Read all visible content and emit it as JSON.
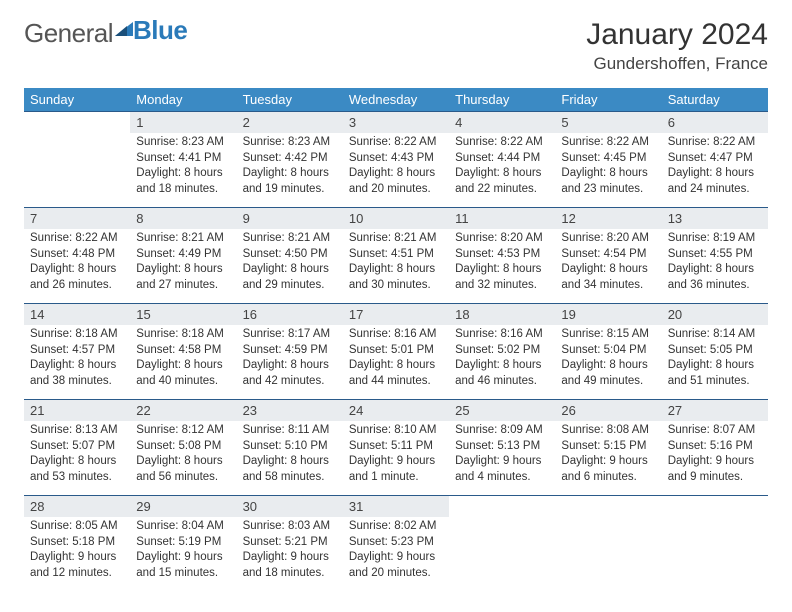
{
  "logo": {
    "part1": "General",
    "part2": "Blue"
  },
  "title": "January 2024",
  "location": "Gundershoffen, France",
  "weekdays": [
    "Sunday",
    "Monday",
    "Tuesday",
    "Wednesday",
    "Thursday",
    "Friday",
    "Saturday"
  ],
  "colors": {
    "header_bg": "#3b8ac4",
    "header_text": "#ffffff",
    "daynum_bg": "#e9ecef",
    "row_border": "#2a5a8a",
    "logo_gray": "#555555",
    "logo_blue": "#2a7ab9"
  },
  "weeks": [
    {
      "nums": [
        "",
        "1",
        "2",
        "3",
        "4",
        "5",
        "6"
      ],
      "cells": [
        {},
        {
          "sunrise": "Sunrise: 8:23 AM",
          "sunset": "Sunset: 4:41 PM",
          "day1": "Daylight: 8 hours",
          "day2": "and 18 minutes."
        },
        {
          "sunrise": "Sunrise: 8:23 AM",
          "sunset": "Sunset: 4:42 PM",
          "day1": "Daylight: 8 hours",
          "day2": "and 19 minutes."
        },
        {
          "sunrise": "Sunrise: 8:22 AM",
          "sunset": "Sunset: 4:43 PM",
          "day1": "Daylight: 8 hours",
          "day2": "and 20 minutes."
        },
        {
          "sunrise": "Sunrise: 8:22 AM",
          "sunset": "Sunset: 4:44 PM",
          "day1": "Daylight: 8 hours",
          "day2": "and 22 minutes."
        },
        {
          "sunrise": "Sunrise: 8:22 AM",
          "sunset": "Sunset: 4:45 PM",
          "day1": "Daylight: 8 hours",
          "day2": "and 23 minutes."
        },
        {
          "sunrise": "Sunrise: 8:22 AM",
          "sunset": "Sunset: 4:47 PM",
          "day1": "Daylight: 8 hours",
          "day2": "and 24 minutes."
        }
      ]
    },
    {
      "nums": [
        "7",
        "8",
        "9",
        "10",
        "11",
        "12",
        "13"
      ],
      "cells": [
        {
          "sunrise": "Sunrise: 8:22 AM",
          "sunset": "Sunset: 4:48 PM",
          "day1": "Daylight: 8 hours",
          "day2": "and 26 minutes."
        },
        {
          "sunrise": "Sunrise: 8:21 AM",
          "sunset": "Sunset: 4:49 PM",
          "day1": "Daylight: 8 hours",
          "day2": "and 27 minutes."
        },
        {
          "sunrise": "Sunrise: 8:21 AM",
          "sunset": "Sunset: 4:50 PM",
          "day1": "Daylight: 8 hours",
          "day2": "and 29 minutes."
        },
        {
          "sunrise": "Sunrise: 8:21 AM",
          "sunset": "Sunset: 4:51 PM",
          "day1": "Daylight: 8 hours",
          "day2": "and 30 minutes."
        },
        {
          "sunrise": "Sunrise: 8:20 AM",
          "sunset": "Sunset: 4:53 PM",
          "day1": "Daylight: 8 hours",
          "day2": "and 32 minutes."
        },
        {
          "sunrise": "Sunrise: 8:20 AM",
          "sunset": "Sunset: 4:54 PM",
          "day1": "Daylight: 8 hours",
          "day2": "and 34 minutes."
        },
        {
          "sunrise": "Sunrise: 8:19 AM",
          "sunset": "Sunset: 4:55 PM",
          "day1": "Daylight: 8 hours",
          "day2": "and 36 minutes."
        }
      ]
    },
    {
      "nums": [
        "14",
        "15",
        "16",
        "17",
        "18",
        "19",
        "20"
      ],
      "cells": [
        {
          "sunrise": "Sunrise: 8:18 AM",
          "sunset": "Sunset: 4:57 PM",
          "day1": "Daylight: 8 hours",
          "day2": "and 38 minutes."
        },
        {
          "sunrise": "Sunrise: 8:18 AM",
          "sunset": "Sunset: 4:58 PM",
          "day1": "Daylight: 8 hours",
          "day2": "and 40 minutes."
        },
        {
          "sunrise": "Sunrise: 8:17 AM",
          "sunset": "Sunset: 4:59 PM",
          "day1": "Daylight: 8 hours",
          "day2": "and 42 minutes."
        },
        {
          "sunrise": "Sunrise: 8:16 AM",
          "sunset": "Sunset: 5:01 PM",
          "day1": "Daylight: 8 hours",
          "day2": "and 44 minutes."
        },
        {
          "sunrise": "Sunrise: 8:16 AM",
          "sunset": "Sunset: 5:02 PM",
          "day1": "Daylight: 8 hours",
          "day2": "and 46 minutes."
        },
        {
          "sunrise": "Sunrise: 8:15 AM",
          "sunset": "Sunset: 5:04 PM",
          "day1": "Daylight: 8 hours",
          "day2": "and 49 minutes."
        },
        {
          "sunrise": "Sunrise: 8:14 AM",
          "sunset": "Sunset: 5:05 PM",
          "day1": "Daylight: 8 hours",
          "day2": "and 51 minutes."
        }
      ]
    },
    {
      "nums": [
        "21",
        "22",
        "23",
        "24",
        "25",
        "26",
        "27"
      ],
      "cells": [
        {
          "sunrise": "Sunrise: 8:13 AM",
          "sunset": "Sunset: 5:07 PM",
          "day1": "Daylight: 8 hours",
          "day2": "and 53 minutes."
        },
        {
          "sunrise": "Sunrise: 8:12 AM",
          "sunset": "Sunset: 5:08 PM",
          "day1": "Daylight: 8 hours",
          "day2": "and 56 minutes."
        },
        {
          "sunrise": "Sunrise: 8:11 AM",
          "sunset": "Sunset: 5:10 PM",
          "day1": "Daylight: 8 hours",
          "day2": "and 58 minutes."
        },
        {
          "sunrise": "Sunrise: 8:10 AM",
          "sunset": "Sunset: 5:11 PM",
          "day1": "Daylight: 9 hours",
          "day2": "and 1 minute."
        },
        {
          "sunrise": "Sunrise: 8:09 AM",
          "sunset": "Sunset: 5:13 PM",
          "day1": "Daylight: 9 hours",
          "day2": "and 4 minutes."
        },
        {
          "sunrise": "Sunrise: 8:08 AM",
          "sunset": "Sunset: 5:15 PM",
          "day1": "Daylight: 9 hours",
          "day2": "and 6 minutes."
        },
        {
          "sunrise": "Sunrise: 8:07 AM",
          "sunset": "Sunset: 5:16 PM",
          "day1": "Daylight: 9 hours",
          "day2": "and 9 minutes."
        }
      ]
    },
    {
      "nums": [
        "28",
        "29",
        "30",
        "31",
        "",
        "",
        ""
      ],
      "cells": [
        {
          "sunrise": "Sunrise: 8:05 AM",
          "sunset": "Sunset: 5:18 PM",
          "day1": "Daylight: 9 hours",
          "day2": "and 12 minutes."
        },
        {
          "sunrise": "Sunrise: 8:04 AM",
          "sunset": "Sunset: 5:19 PM",
          "day1": "Daylight: 9 hours",
          "day2": "and 15 minutes."
        },
        {
          "sunrise": "Sunrise: 8:03 AM",
          "sunset": "Sunset: 5:21 PM",
          "day1": "Daylight: 9 hours",
          "day2": "and 18 minutes."
        },
        {
          "sunrise": "Sunrise: 8:02 AM",
          "sunset": "Sunset: 5:23 PM",
          "day1": "Daylight: 9 hours",
          "day2": "and 20 minutes."
        },
        {},
        {},
        {}
      ]
    }
  ]
}
